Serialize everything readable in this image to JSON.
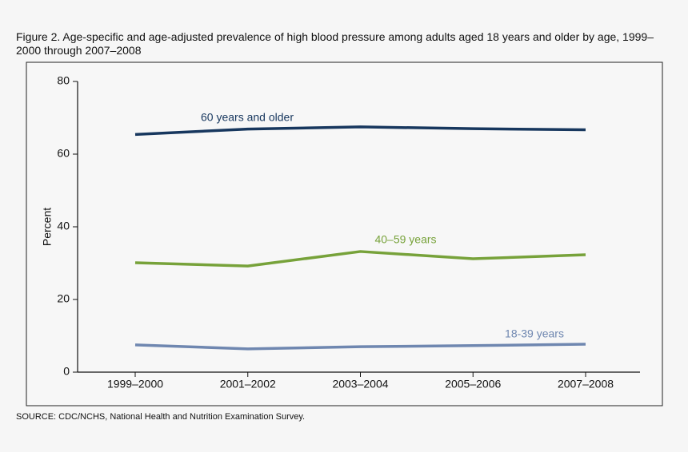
{
  "chart_data": {
    "type": "line",
    "title": "Figure 2. Age-specific and age-adjusted prevalence of high blood pressure among adults aged 18 years and older by age, 1999–2000 through 2007–2008",
    "y_label": "Percent",
    "source": "SOURCE: CDC/NCHS, National Health and Nutrition Examination Survey.",
    "categories": [
      "1999–2000",
      "2001–2002",
      "2003–2004",
      "2005–2006",
      "2007–2008"
    ],
    "series": [
      {
        "name": "60 years and older",
        "color": "#17375e",
        "values": [
          65.4,
          66.9,
          67.5,
          67.0,
          66.7
        ]
      },
      {
        "name": "40–59 years",
        "color": "#77a23a",
        "values": [
          30.1,
          29.2,
          33.2,
          31.2,
          32.3
        ]
      },
      {
        "name": "18-39 years",
        "color": "#6f87b0",
        "values": [
          7.5,
          6.4,
          7.0,
          7.3,
          7.7
        ]
      }
    ],
    "ylim": [
      0,
      80
    ],
    "yticks": [
      0,
      20,
      40,
      60,
      80
    ],
    "grid": false
  }
}
